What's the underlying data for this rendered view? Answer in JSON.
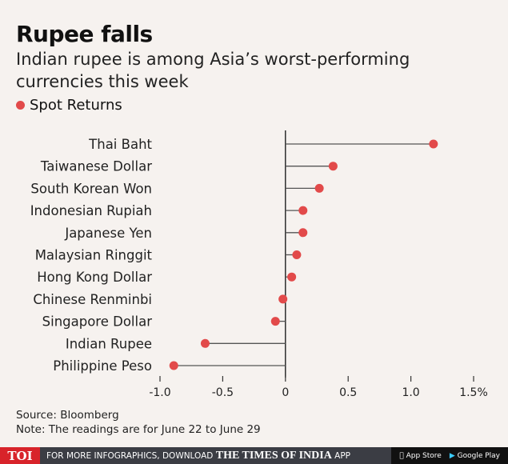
{
  "header": {
    "title": "Rupee falls",
    "subtitle": "Indian rupee is among Asia’s worst-performing currencies this week"
  },
  "chart_data": {
    "type": "lollipop",
    "title": "Rupee falls",
    "legend": [
      "Spot Returns"
    ],
    "categories": [
      "Thai Baht",
      "Taiwanese Dollar",
      "South Korean Won",
      "Indonesian Rupiah",
      "Japanese Yen",
      "Malaysian Ringgit",
      "Hong Kong Dollar",
      "Chinese Renminbi",
      "Singapore Dollar",
      "Indian Rupee",
      "Philippine Peso"
    ],
    "series": [
      {
        "name": "Spot Returns",
        "values": [
          1.18,
          0.38,
          0.27,
          0.14,
          0.14,
          0.09,
          0.05,
          -0.02,
          -0.08,
          -0.64,
          -0.89
        ]
      }
    ],
    "xlim": [
      -1.0,
      1.5
    ],
    "xticks": [
      -1.0,
      -0.5,
      0,
      0.5,
      1.0,
      1.5
    ],
    "xtick_labels": [
      "-1.0",
      "-0.5",
      "0",
      "0.5",
      "1.0",
      "1.5%"
    ],
    "colors": {
      "dot": "#e24a4a",
      "stem": "#555555",
      "axis": "#111111"
    }
  },
  "notes": {
    "source": "Source: Bloomberg",
    "note": "Note: The readings are for June 22 to June 29"
  },
  "footer": {
    "logo": "TOI",
    "text": "FOR MORE INFOGRAPHICS, DOWNLOAD",
    "brand": "THE TIMES OF INDIA",
    "app": "APP",
    "app_store": "App Store",
    "google_play": "Google Play"
  }
}
